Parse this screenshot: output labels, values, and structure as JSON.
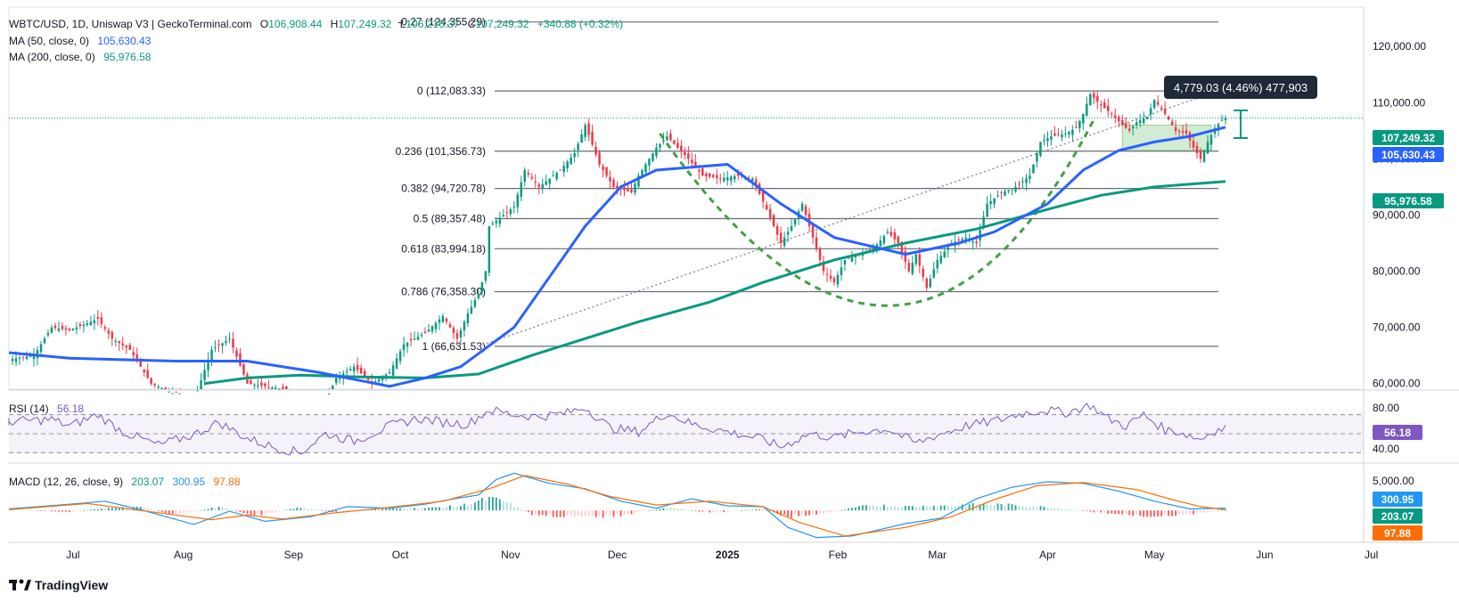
{
  "legend": {
    "pair": "WBTC/USD, 1D, Uniswap V3 | GeckoTerminal.com",
    "o_label": "O",
    "o_value": "106,908.44",
    "h_label": "H",
    "h_value": "107,249.32",
    "l_label": "L",
    "l_value": "106,216.37",
    "c_label": "C",
    "c_value": "107,249.32",
    "change": "+340.88 (+0.32%)",
    "ma50_label": "MA (50, close, 0)",
    "ma50_value": "105,630.43",
    "ma200_label": "MA (200, close, 0)",
    "ma200_value": "95,976.58"
  },
  "measure_tooltip": "4,779.03 (4.46%) 477,903",
  "price_labels": {
    "last": "107,249.32",
    "ma50": "105,630.43",
    "ma200": "95,976.58"
  },
  "rsi": {
    "label": "RSI (14)",
    "value": "56.18",
    "axis_top": "80.00",
    "axis_bottom": "40.00"
  },
  "macd": {
    "label": "MACD (12, 26, close, 9)",
    "hist": "203.07",
    "macd": "300.95",
    "signal": "97.88",
    "axis_top": "5,000.00"
  },
  "footer": {
    "brand": "TradingView"
  },
  "colors": {
    "up": "#089981",
    "down": "#f23645",
    "ma50": "#2962ff",
    "ma200": "#089981",
    "fib": "#787b86",
    "rsi": "#7e57c2",
    "macd": "#2196f3",
    "signal": "#ff6d00",
    "pattern": "#4caf50"
  },
  "chart_data": {
    "type": "candlestick",
    "title": "WBTC/USD, 1D, Uniswap V3 | GeckoTerminal.com",
    "y_axis_ticks": [
      60000,
      70000,
      80000,
      90000,
      100000,
      110000,
      120000
    ],
    "y_tick_labels": [
      "60,000.00",
      "70,000.00",
      "80,000.00",
      "90,000.00",
      "100,000.00",
      "110,000.00",
      "120,000.00"
    ],
    "ylim": [
      59000,
      127000
    ],
    "x_tick_labels": [
      "Jun",
      "Jul",
      "Aug",
      "Sep",
      "Oct",
      "Nov",
      "Dec",
      "2025",
      "Feb",
      "Mar",
      "Apr",
      "May",
      "Jun",
      "Jul",
      "Aug"
    ],
    "fib_levels": [
      {
        "label": "-0.27 (124,355.29)",
        "value": 124355.29
      },
      {
        "label": "0 (112,083.33)",
        "value": 112083.33
      },
      {
        "label": "0.236 (101,356.73)",
        "value": 101356.73
      },
      {
        "label": "0.382 (94,720.78)",
        "value": 94720.78
      },
      {
        "label": "0.5 (89,357.48)",
        "value": 89357.48
      },
      {
        "label": "0.618 (83,994.18)",
        "value": 83994.18
      },
      {
        "label": "0.786 (76,358.30)",
        "value": 76358.3
      },
      {
        "label": "1 (66,631.53)",
        "value": 66631.53
      }
    ],
    "price_path": [
      [
        -10,
        64000
      ],
      [
        0,
        65000
      ],
      [
        5,
        70000
      ],
      [
        10,
        69500
      ],
      [
        18,
        71500
      ],
      [
        22,
        68000
      ],
      [
        27,
        66000
      ],
      [
        33,
        60000
      ],
      [
        40,
        58000
      ],
      [
        45,
        57000
      ],
      [
        50,
        66000
      ],
      [
        55,
        68000
      ],
      [
        60,
        60000
      ],
      [
        65,
        59500
      ],
      [
        70,
        59000
      ],
      [
        75,
        56000
      ],
      [
        80,
        54000
      ],
      [
        85,
        61000
      ],
      [
        90,
        63000
      ],
      [
        95,
        60000
      ],
      [
        100,
        62000
      ],
      [
        104,
        67000
      ],
      [
        110,
        69000
      ],
      [
        115,
        72000
      ],
      [
        119,
        68000
      ],
      [
        122,
        72500
      ],
      [
        125,
        76000
      ],
      [
        127,
        80000
      ],
      [
        128,
        88000
      ],
      [
        132,
        90000
      ],
      [
        135,
        91500
      ],
      [
        138,
        98000
      ],
      [
        142,
        95000
      ],
      [
        148,
        98000
      ],
      [
        152,
        101000
      ],
      [
        155,
        106000
      ],
      [
        159,
        99000
      ],
      [
        163,
        95000
      ],
      [
        168,
        94000
      ],
      [
        170,
        97000
      ],
      [
        175,
        102000
      ],
      [
        178,
        104000
      ],
      [
        181,
        102000
      ],
      [
        184,
        100000
      ],
      [
        188,
        97000
      ],
      [
        193,
        96500
      ],
      [
        198,
        97000
      ],
      [
        202,
        96500
      ],
      [
        206,
        91000
      ],
      [
        210,
        85000
      ],
      [
        213,
        88000
      ],
      [
        216,
        92000
      ],
      [
        219,
        86000
      ],
      [
        222,
        80000
      ],
      [
        225,
        78000
      ],
      [
        228,
        82000
      ],
      [
        232,
        83000
      ],
      [
        236,
        84000
      ],
      [
        240,
        87000
      ],
      [
        243,
        85000
      ],
      [
        246,
        80000
      ],
      [
        248,
        83000
      ],
      [
        251,
        77000
      ],
      [
        254,
        82000
      ],
      [
        258,
        85000
      ],
      [
        262,
        86000
      ],
      [
        265,
        85000
      ],
      [
        268,
        92000
      ],
      [
        272,
        94000
      ],
      [
        276,
        95000
      ],
      [
        280,
        97000
      ],
      [
        283,
        103000
      ],
      [
        286,
        104000
      ],
      [
        290,
        104500
      ],
      [
        293,
        105500
      ],
      [
        295,
        108000
      ],
      [
        297,
        111500
      ],
      [
        300,
        109500
      ],
      [
        303,
        108000
      ],
      [
        306,
        106000
      ],
      [
        308,
        105000
      ],
      [
        310,
        106500
      ],
      [
        313,
        107500
      ],
      [
        315,
        110500
      ],
      [
        318,
        108000
      ],
      [
        321,
        105000
      ],
      [
        324,
        104500
      ],
      [
        326,
        102000
      ],
      [
        328,
        100000
      ],
      [
        330,
        103000
      ],
      [
        332,
        105500
      ],
      [
        334,
        106900
      ],
      [
        335,
        107249.32
      ]
    ],
    "ma50_path": [
      [
        -10,
        65500
      ],
      [
        10,
        64500
      ],
      [
        40,
        64000
      ],
      [
        60,
        64000
      ],
      [
        80,
        62000
      ],
      [
        100,
        59500
      ],
      [
        110,
        61000
      ],
      [
        120,
        63000
      ],
      [
        135,
        70000
      ],
      [
        155,
        88000
      ],
      [
        165,
        95000
      ],
      [
        175,
        98000
      ],
      [
        185,
        98500
      ],
      [
        195,
        99000
      ],
      [
        210,
        92000
      ],
      [
        225,
        86000
      ],
      [
        245,
        83000
      ],
      [
        260,
        85000
      ],
      [
        270,
        87000
      ],
      [
        285,
        92000
      ],
      [
        295,
        98000
      ],
      [
        305,
        101500
      ],
      [
        315,
        103000
      ],
      [
        325,
        104000
      ],
      [
        335,
        105630.43
      ]
    ],
    "ma200_path": [
      [
        48,
        60000
      ],
      [
        60,
        61000
      ],
      [
        75,
        61500
      ],
      [
        90,
        61200
      ],
      [
        110,
        61000
      ],
      [
        125,
        61700
      ],
      [
        140,
        65000
      ],
      [
        155,
        68000
      ],
      [
        170,
        71000
      ],
      [
        190,
        74500
      ],
      [
        205,
        78000
      ],
      [
        225,
        82000
      ],
      [
        245,
        85000
      ],
      [
        265,
        87500
      ],
      [
        285,
        91000
      ],
      [
        300,
        93500
      ],
      [
        315,
        95000
      ],
      [
        335,
        95976.58
      ]
    ],
    "rsi_range": [
      20,
      95
    ],
    "rsi_path": [
      [
        -10,
        62
      ],
      [
        5,
        65
      ],
      [
        10,
        58
      ],
      [
        18,
        70
      ],
      [
        25,
        52
      ],
      [
        35,
        38
      ],
      [
        45,
        49
      ],
      [
        52,
        62
      ],
      [
        60,
        45
      ],
      [
        68,
        35
      ],
      [
        75,
        30
      ],
      [
        82,
        50
      ],
      [
        90,
        42
      ],
      [
        100,
        58
      ],
      [
        108,
        66
      ],
      [
        115,
        62
      ],
      [
        122,
        60
      ],
      [
        128,
        75
      ],
      [
        135,
        70
      ],
      [
        142,
        68
      ],
      [
        150,
        72
      ],
      [
        155,
        78
      ],
      [
        162,
        56
      ],
      [
        170,
        52
      ],
      [
        178,
        72
      ],
      [
        185,
        60
      ],
      [
        195,
        52
      ],
      [
        205,
        44
      ],
      [
        210,
        36
      ],
      [
        218,
        50
      ],
      [
        225,
        46
      ],
      [
        232,
        52
      ],
      [
        240,
        55
      ],
      [
        248,
        40
      ],
      [
        255,
        50
      ],
      [
        262,
        58
      ],
      [
        268,
        62
      ],
      [
        272,
        65
      ],
      [
        276,
        70
      ],
      [
        284,
        75
      ],
      [
        290,
        72
      ],
      [
        297,
        80
      ],
      [
        302,
        66
      ],
      [
        307,
        58
      ],
      [
        312,
        70
      ],
      [
        318,
        54
      ],
      [
        322,
        52
      ],
      [
        328,
        44
      ],
      [
        331,
        52
      ],
      [
        335,
        56.18
      ]
    ],
    "macd_range": [
      -4000,
      6000
    ],
    "macd_path": [
      [
        -10,
        200
      ],
      [
        10,
        800
      ],
      [
        20,
        1200
      ],
      [
        30,
        100
      ],
      [
        45,
        -1800
      ],
      [
        55,
        -100
      ],
      [
        65,
        -1400
      ],
      [
        78,
        -800
      ],
      [
        88,
        500
      ],
      [
        100,
        300
      ],
      [
        110,
        800
      ],
      [
        118,
        1500
      ],
      [
        125,
        2000
      ],
      [
        130,
        4000
      ],
      [
        135,
        4800
      ],
      [
        145,
        3500
      ],
      [
        155,
        2800
      ],
      [
        165,
        1200
      ],
      [
        175,
        300
      ],
      [
        185,
        1500
      ],
      [
        195,
        600
      ],
      [
        205,
        500
      ],
      [
        212,
        -2200
      ],
      [
        220,
        -3500
      ],
      [
        230,
        -3300
      ],
      [
        245,
        -1700
      ],
      [
        255,
        -1000
      ],
      [
        265,
        1500
      ],
      [
        275,
        3000
      ],
      [
        285,
        3700
      ],
      [
        295,
        3500
      ],
      [
        305,
        2500
      ],
      [
        315,
        1200
      ],
      [
        325,
        200
      ],
      [
        335,
        300.95
      ]
    ],
    "signal_path": [
      [
        -10,
        100
      ],
      [
        15,
        900
      ],
      [
        35,
        -300
      ],
      [
        50,
        -1200
      ],
      [
        60,
        -600
      ],
      [
        70,
        -1100
      ],
      [
        85,
        -300
      ],
      [
        100,
        400
      ],
      [
        115,
        1200
      ],
      [
        128,
        2800
      ],
      [
        138,
        4500
      ],
      [
        150,
        3400
      ],
      [
        162,
        1800
      ],
      [
        175,
        700
      ],
      [
        190,
        1200
      ],
      [
        205,
        500
      ],
      [
        215,
        -1500
      ],
      [
        228,
        -3300
      ],
      [
        245,
        -2200
      ],
      [
        258,
        -800
      ],
      [
        270,
        1400
      ],
      [
        282,
        3200
      ],
      [
        295,
        3600
      ],
      [
        310,
        2700
      ],
      [
        320,
        1400
      ],
      [
        328,
        500
      ],
      [
        335,
        97.88
      ]
    ],
    "hist_sample": [
      [
        -5,
        100
      ],
      [
        10,
        -200
      ],
      [
        20,
        300
      ],
      [
        30,
        400
      ],
      [
        40,
        -600
      ],
      [
        52,
        500
      ],
      [
        62,
        -700
      ],
      [
        75,
        400
      ],
      [
        85,
        -300
      ],
      [
        95,
        200
      ],
      [
        110,
        300
      ],
      [
        120,
        600
      ],
      [
        128,
        1500
      ],
      [
        132,
        1200
      ],
      [
        140,
        -500
      ],
      [
        155,
        -900
      ],
      [
        165,
        -600
      ],
      [
        178,
        400
      ],
      [
        190,
        -300
      ],
      [
        205,
        200
      ],
      [
        212,
        -800
      ],
      [
        222,
        -400
      ],
      [
        235,
        700
      ],
      [
        245,
        500
      ],
      [
        255,
        600
      ],
      [
        268,
        800
      ],
      [
        280,
        600
      ],
      [
        290,
        200
      ],
      [
        300,
        -300
      ],
      [
        312,
        -700
      ],
      [
        322,
        -600
      ],
      [
        330,
        -200
      ],
      [
        335,
        203.07
      ]
    ]
  }
}
